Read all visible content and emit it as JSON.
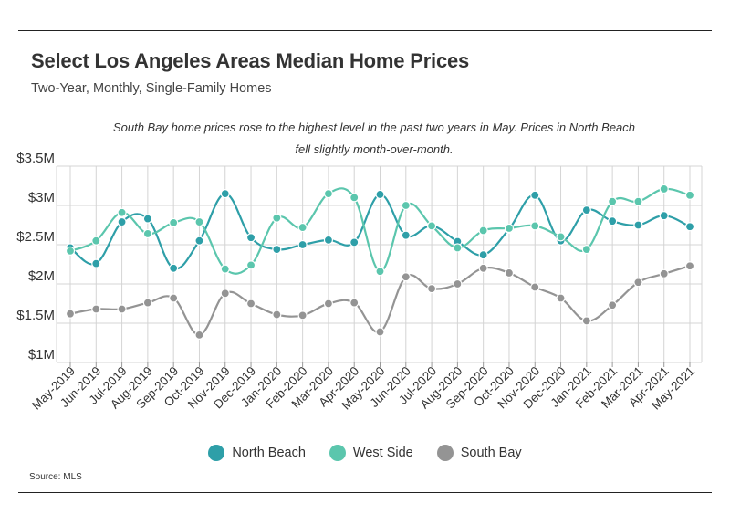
{
  "header": {
    "title": "Select Los Angeles Areas Median Home Prices",
    "subtitle": "Two-Year, Monthly, Single-Family Homes"
  },
  "annotation": "South Bay home prices rose to the highest level in the past two years in May. Prices in North Beach fell slightly month-over-month.",
  "source": "Source:  MLS",
  "chart_data": {
    "type": "line",
    "categories": [
      "May-2019",
      "Jun-2019",
      "Jul-2019",
      "Aug-2019",
      "Sep-2019",
      "Oct-2019",
      "Nov-2019",
      "Dec-2019",
      "Jan-2020",
      "Feb-2020",
      "Mar-2020",
      "Apr-2020",
      "May-2020",
      "Jun-2020",
      "Jul-2020",
      "Aug-2020",
      "Sep-2020",
      "Oct-2020",
      "Nov-2020",
      "Dec-2020",
      "Jan-2021",
      "Feb-2021",
      "Mar-2021",
      "Apr-2021",
      "May-2021"
    ],
    "ylim": [
      1.0,
      3.5
    ],
    "yticks": [
      {
        "value": 1.0,
        "label": "$1M"
      },
      {
        "value": 1.5,
        "label": "$1.5M"
      },
      {
        "value": 2.0,
        "label": "$2M"
      },
      {
        "value": 2.5,
        "label": "$2.5M"
      },
      {
        "value": 3.0,
        "label": "$3M"
      },
      {
        "value": 3.5,
        "label": "$3.5M"
      }
    ],
    "grid": true,
    "legend_position": "bottom",
    "series": [
      {
        "name": "North Beach",
        "color": "#2e9fa8",
        "values": [
          2.46,
          2.26,
          2.79,
          2.83,
          2.2,
          2.55,
          3.15,
          2.59,
          2.44,
          2.5,
          2.56,
          2.53,
          3.14,
          2.62,
          2.74,
          2.54,
          2.37,
          2.7,
          3.13,
          2.55,
          2.94,
          2.8,
          2.75,
          2.87,
          2.73
        ]
      },
      {
        "name": "West Side",
        "color": "#5bc6ad",
        "values": [
          2.42,
          2.55,
          2.91,
          2.64,
          2.78,
          2.79,
          2.19,
          2.24,
          2.84,
          2.72,
          3.15,
          3.1,
          2.16,
          3.0,
          2.74,
          2.46,
          2.68,
          2.71,
          2.74,
          2.6,
          2.44,
          3.05,
          3.05,
          3.21,
          3.13
        ]
      },
      {
        "name": "South Bay",
        "color": "#949494",
        "values": [
          1.62,
          1.68,
          1.68,
          1.76,
          1.82,
          1.35,
          1.88,
          1.75,
          1.61,
          1.6,
          1.75,
          1.76,
          1.39,
          2.09,
          1.94,
          2.0,
          2.2,
          2.14,
          1.96,
          1.82,
          1.53,
          1.73,
          2.02,
          2.13,
          2.23
        ]
      }
    ]
  }
}
